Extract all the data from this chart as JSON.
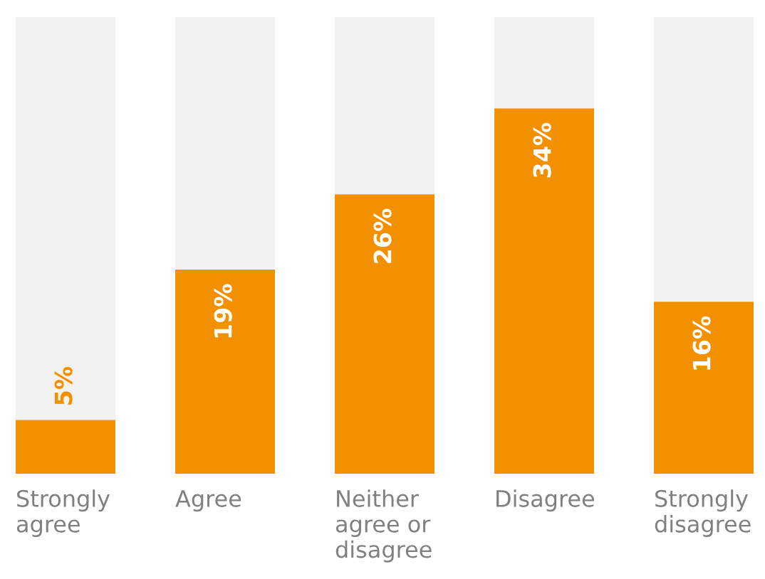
{
  "chart_data": {
    "type": "bar",
    "categories": [
      "Strongly\nagree",
      "Agree",
      "Neither\nagree or\ndisagree",
      "Disagree",
      "Strongly\ndisagree"
    ],
    "values": [
      5,
      19,
      26,
      34,
      16
    ],
    "value_labels": [
      "5%",
      "19%",
      "26%",
      "34%",
      "16%"
    ],
    "color": "#f39000",
    "ylim": [
      0,
      42.5
    ]
  }
}
